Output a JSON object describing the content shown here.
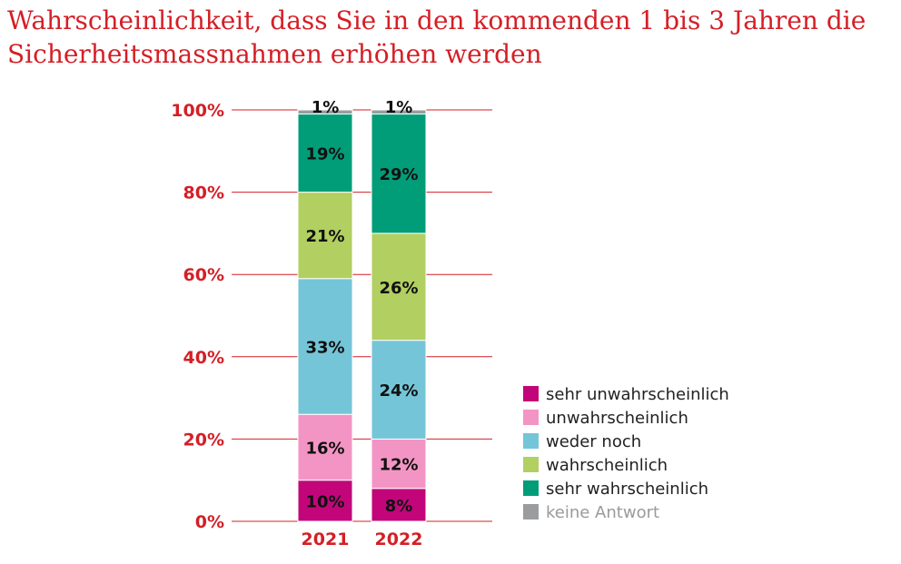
{
  "title_lines": [
    "Wahrscheinlichkeit, dass Sie in den kommenden 1 bis 3 Jahren die",
    "Sicherheitsmassnahmen erhöhen werden"
  ],
  "chart_data": {
    "type": "bar",
    "stacked": true,
    "title": "Wahrscheinlichkeit, dass Sie in den kommenden 1 bis 3 Jahren die Sicherheitsmassnahmen erhöhen werden",
    "categories": [
      "2021",
      "2022"
    ],
    "ylim": [
      0,
      100
    ],
    "yticks": [
      0,
      20,
      40,
      60,
      80,
      100
    ],
    "ytick_labels": [
      "0%",
      "20%",
      "40%",
      "60%",
      "80%",
      "100%"
    ],
    "grid": true,
    "legend_position": "right",
    "series": [
      {
        "name": "sehr unwahrscheinlich",
        "color": "#c2067a",
        "values": [
          10,
          8
        ],
        "labels": [
          "10%",
          "8%"
        ]
      },
      {
        "name": "unwahrscheinlich",
        "color": "#f395c4",
        "values": [
          16,
          12
        ],
        "labels": [
          "16%",
          "12%"
        ]
      },
      {
        "name": "weder noch",
        "color": "#74c5d7",
        "values": [
          33,
          24
        ],
        "labels": [
          "33%",
          "24%"
        ]
      },
      {
        "name": "wahrscheinlich",
        "color": "#b2cf61",
        "values": [
          21,
          26
        ],
        "labels": [
          "21%",
          "26%"
        ]
      },
      {
        "name": "sehr wahrscheinlich",
        "color": "#019d78",
        "values": [
          19,
          29
        ],
        "labels": [
          "19%",
          "29%"
        ]
      },
      {
        "name": "keine Antwort",
        "color": "#9b9c9e",
        "values": [
          1,
          1
        ],
        "labels": [
          "1%",
          "1%"
        ]
      }
    ],
    "gridline_color": "#d41f26"
  }
}
